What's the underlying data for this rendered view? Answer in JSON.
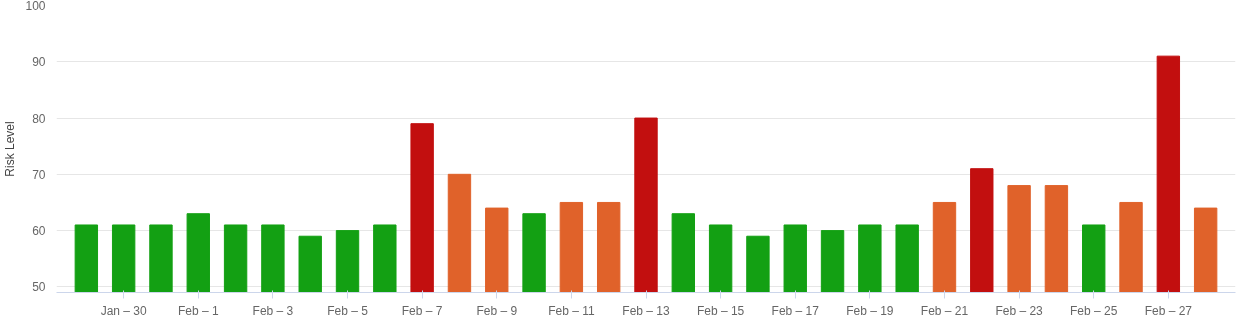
{
  "chart_data": {
    "type": "bar",
    "ylabel": "Risk Level",
    "categories": [
      null,
      "Jan – 30",
      null,
      "Feb – 1",
      null,
      "Feb – 3",
      null,
      "Feb – 5",
      null,
      "Feb – 7",
      null,
      "Feb – 9",
      null,
      "Feb – 11",
      null,
      "Feb – 13",
      null,
      "Feb – 15",
      null,
      "Feb – 17",
      null,
      "Feb – 19",
      null,
      "Feb – 21",
      null,
      "Feb – 23",
      null,
      "Feb – 25",
      null,
      "Feb – 27",
      null
    ],
    "values": [
      61,
      61,
      61,
      63,
      61,
      61,
      59,
      60,
      61,
      79,
      70,
      64,
      63,
      65,
      65,
      80,
      63,
      61,
      59,
      61,
      60,
      61,
      61,
      65,
      71,
      68,
      68,
      61,
      65,
      91,
      64
    ],
    "colors": [
      "#13a013",
      "#13a013",
      "#13a013",
      "#13a013",
      "#13a013",
      "#13a013",
      "#13a013",
      "#13a013",
      "#13a013",
      "#c20f0f",
      "#e0622a",
      "#e0622a",
      "#13a013",
      "#e0622a",
      "#e0622a",
      "#c20f0f",
      "#13a013",
      "#13a013",
      "#13a013",
      "#13a013",
      "#13a013",
      "#13a013",
      "#13a013",
      "#e0622a",
      "#c20f0f",
      "#e0622a",
      "#e0622a",
      "#13a013",
      "#e0622a",
      "#c20f0f",
      "#e0622a"
    ],
    "ylim": [
      49,
      100
    ],
    "yticks": [
      50,
      60,
      70,
      80,
      90,
      100
    ],
    "grid": "y"
  }
}
